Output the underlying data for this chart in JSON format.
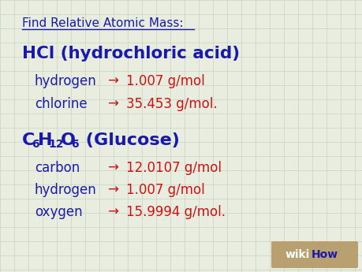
{
  "background_color": "#e8ede0",
  "grid_color": "#c8d4c0",
  "blue_color": "#1a1aaa",
  "red_color": "#cc1111",
  "tan_color": "#b8a070",
  "title": "Find Relative Atomic Mass:",
  "hcl_lines": [
    [
      "hydrogen",
      "→",
      "1.007 g/mol"
    ],
    [
      "chlorine",
      "→",
      "35.453 g/mol."
    ]
  ],
  "glucose_lines": [
    [
      "carbon",
      "→",
      "12.0107 g/mol"
    ],
    [
      "hydrogen",
      "→",
      "1.007 g/mol"
    ],
    [
      "oxygen",
      "→",
      "15.9994 g/mol."
    ]
  ],
  "fig_width": 4.6,
  "fig_height": 3.45,
  "dpi": 100
}
